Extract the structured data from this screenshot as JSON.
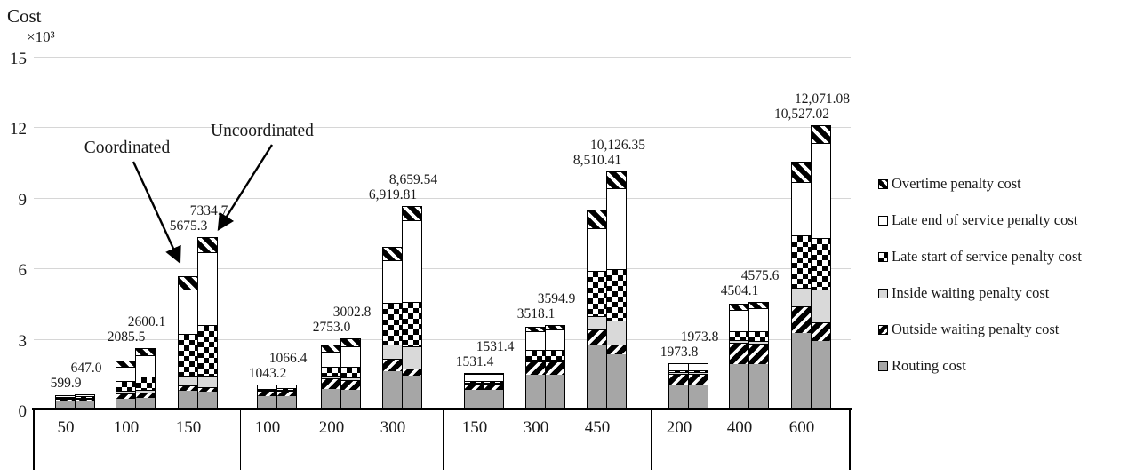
{
  "page": {
    "background": "#ffffff"
  },
  "chart_data": {
    "type": "bar",
    "stacked": true,
    "ylabel": "Cost",
    "y_multiplier_label": "×10³",
    "ylim": [
      0,
      15
    ],
    "yticks": [
      "0",
      "3",
      "6",
      "9",
      "12",
      "15"
    ],
    "grid": true,
    "legend_position": "right",
    "bar_pair": [
      "Coordinated",
      "Uncoordinated"
    ],
    "series_bottom_to_top": [
      {
        "name": "Routing cost",
        "pattern": "solid-gray",
        "color": "#a6a6a6"
      },
      {
        "name": "Outside waiting penalty cost",
        "pattern": "diagonal-slash-hatch",
        "color": "#000000"
      },
      {
        "name": "Inside waiting penalty cost",
        "pattern": "solid-light-gray",
        "color": "#d9d9d9"
      },
      {
        "name": "Late start of service penalty cost",
        "pattern": "checkerboard",
        "color": "#000000"
      },
      {
        "name": "Late end of service penalty cost",
        "pattern": "solid-white",
        "color": "#ffffff"
      },
      {
        "name": "Overtime penalty cost",
        "pattern": "diagonal-backslash-hatch",
        "color": "#000000"
      }
    ],
    "legend_top_to_bottom": [
      "Overtime penalty cost",
      "Late end of service penalty cost",
      "Late start of service penalty cost",
      "Inside waiting penalty cost",
      "Outside waiting penalty cost",
      "Routing cost"
    ],
    "segments_estimated_from_pixels": true,
    "groups": [
      {
        "categories": [
          {
            "x": "50",
            "coordinated": {
              "total": 599.9,
              "label": "599.9",
              "segments": [
                310,
                90,
                30,
                60,
                80,
                29.9
              ]
            },
            "uncoordinated": {
              "total": 647.0,
              "label": "647.0",
              "segments": [
                320,
                90,
                30,
                80,
                95,
                32
              ]
            }
          },
          {
            "x": "100",
            "coordinated": {
              "total": 2085.5,
              "label": "2085.5",
              "segments": [
                430,
                230,
                100,
                430,
                590,
                305.5
              ]
            },
            "uncoordinated": {
              "total": 2600.1,
              "label": "2600.1",
              "segments": [
                450,
                240,
                120,
                560,
                900,
                330.1
              ]
            }
          },
          {
            "x": "150",
            "coordinated": {
              "total": 5675.3,
              "label": "5675.3",
              "segments": [
                740,
                230,
                430,
                1790,
                1870,
                615.3
              ]
            },
            "uncoordinated": {
              "total": 7334.7,
              "label": "7334.7",
              "segments": [
                700,
                190,
                490,
                2160,
                3110,
                684.7
              ]
            }
          }
        ]
      },
      {
        "categories": [
          {
            "x": "100",
            "coordinated": {
              "total": 1043.2,
              "label": "1043.2",
              "segments": [
                520,
                230,
                40,
                60,
                160,
                33.2
              ]
            },
            "uncoordinated": {
              "total": 1066.4,
              "label": "1066.4",
              "segments": [
                520,
                230,
                40,
                70,
                170,
                36.4
              ]
            }
          },
          {
            "x": "200",
            "coordinated": {
              "total": 2753.0,
              "label": "2753.0",
              "segments": [
                820,
                470,
                90,
                390,
                660,
                323
              ]
            },
            "uncoordinated": {
              "total": 3002.8,
              "label": "3002.8",
              "segments": [
                800,
                420,
                90,
                450,
                900,
                342.8
              ]
            }
          },
          {
            "x": "300",
            "coordinated": {
              "total": 6919.81,
              "label": "6,919.81",
              "segments": [
                1580,
                540,
                600,
                1780,
                1790,
                629.81
              ]
            },
            "uncoordinated": {
              "total": 8659.54,
              "label": "8,659.54",
              "segments": [
                1400,
                300,
                940,
                1880,
                3500,
                639.54
              ]
            }
          }
        ]
      },
      {
        "categories": [
          {
            "x": "150",
            "coordinated": {
              "total": 1531.4,
              "label": "1531.4",
              "segments": [
                800,
                270,
                40,
                80,
                300,
                41.4
              ]
            },
            "uncoordinated": {
              "total": 1531.4,
              "label": "1531.4",
              "segments": [
                800,
                270,
                40,
                80,
                300,
                41.4
              ]
            }
          },
          {
            "x": "300",
            "coordinated": {
              "total": 3518.1,
              "label": "3518.1",
              "segments": [
                1450,
                550,
                90,
                390,
                810,
                228.1
              ]
            },
            "uncoordinated": {
              "total": 3594.9,
              "label": "3594.9",
              "segments": [
                1450,
                540,
                100,
                400,
                870,
                234.9
              ]
            }
          },
          {
            "x": "450",
            "coordinated": {
              "total": 8510.41,
              "label": "8,510.41",
              "segments": [
                2680,
                690,
                570,
                1910,
                1830,
                830.41
              ]
            },
            "uncoordinated": {
              "total": 10126.35,
              "label": "10,126.35",
              "segments": [
                2290,
                420,
                1030,
                2170,
                3460,
                756.35
              ]
            }
          }
        ]
      },
      {
        "categories": [
          {
            "x": "200",
            "coordinated": {
              "total": 1973.8,
              "label": "1973.8",
              "segments": [
                980,
                510,
                50,
                90,
                300,
                43.8
              ]
            },
            "uncoordinated": {
              "total": 1973.8,
              "label": "1973.8",
              "segments": [
                980,
                510,
                50,
                90,
                300,
                43.8
              ]
            }
          },
          {
            "x": "400",
            "coordinated": {
              "total": 4504.1,
              "label": "4504.1",
              "segments": [
                1900,
                880,
                120,
                380,
                920,
                304.1
              ]
            },
            "uncoordinated": {
              "total": 4575.6,
              "label": "4575.6",
              "segments": [
                1900,
                850,
                130,
                400,
                980,
                315.6
              ]
            }
          },
          {
            "x": "600",
            "coordinated": {
              "total": 10527.02,
              "label": "10,527.02",
              "segments": [
                3200,
                1150,
                770,
                2230,
                2290,
                887.02
              ]
            },
            "uncoordinated": {
              "total": 12071.08,
              "label": "12,071.08",
              "segments": [
                2880,
                770,
                1390,
                2200,
                4050,
                781.08
              ]
            }
          }
        ]
      }
    ],
    "annotations": [
      {
        "text": "Coordinated"
      },
      {
        "text": "Uncoordinated"
      }
    ]
  }
}
